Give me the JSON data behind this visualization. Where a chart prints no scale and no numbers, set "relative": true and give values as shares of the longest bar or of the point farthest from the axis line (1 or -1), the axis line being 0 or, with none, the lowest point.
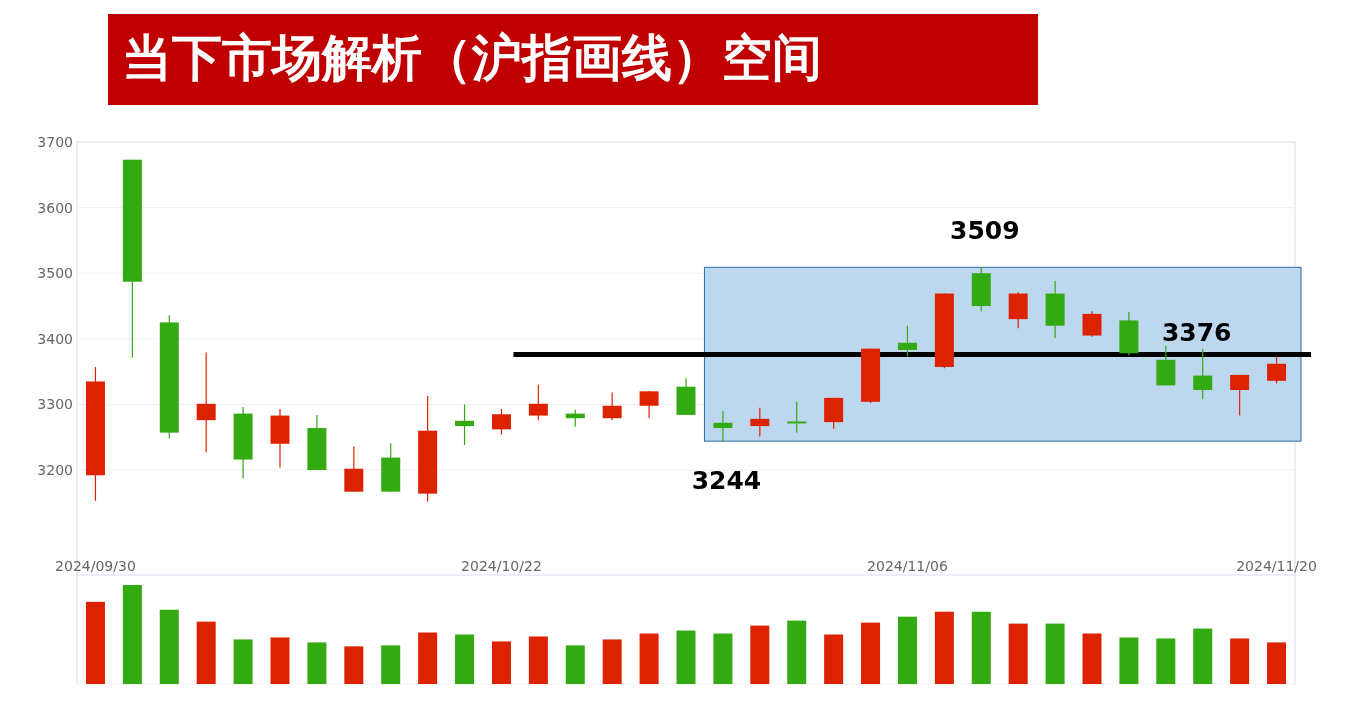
{
  "chart_data": [
    {
      "type": "candlestick",
      "title": "当下市场解析（沪指画线）空间",
      "categories": [
        "2024/09/30",
        null,
        null,
        null,
        null,
        null,
        null,
        null,
        null,
        null,
        null,
        "2024/10/22",
        null,
        null,
        null,
        null,
        null,
        null,
        null,
        null,
        null,
        null,
        "2024/11/06",
        null,
        null,
        null,
        null,
        null,
        null,
        null,
        null,
        null,
        "2024/11/20"
      ],
      "ohlc": [
        [
          3192,
          3357,
          3153,
          3335
        ],
        [
          3673,
          3673,
          3371,
          3487
        ],
        [
          3425,
          3436,
          3248,
          3257
        ],
        [
          3276,
          3379,
          3227,
          3301
        ],
        [
          3286,
          3296,
          3187,
          3216
        ],
        [
          3240,
          3293,
          3204,
          3283
        ],
        [
          3264,
          3284,
          3200,
          3200
        ],
        [
          3167,
          3236,
          3167,
          3202
        ],
        [
          3219,
          3241,
          3167,
          3167
        ],
        [
          3164,
          3313,
          3152,
          3260
        ],
        [
          3275,
          3300,
          3238,
          3267
        ],
        [
          3262,
          3293,
          3254,
          3285
        ],
        [
          3283,
          3330,
          3276,
          3301
        ],
        [
          3286,
          3292,
          3266,
          3279
        ],
        [
          3279,
          3318,
          3276,
          3298
        ],
        [
          3298,
          3320,
          3279,
          3320
        ],
        [
          3327,
          3340,
          3284,
          3284
        ],
        [
          3272,
          3290,
          3244,
          3264
        ],
        [
          3267,
          3295,
          3251,
          3278
        ],
        [
          3274,
          3304,
          3257,
          3271
        ],
        [
          3273,
          3310,
          3263,
          3310
        ],
        [
          3304,
          3385,
          3302,
          3385
        ],
        [
          3394,
          3420,
          3373,
          3383
        ],
        [
          3357,
          3469,
          3355,
          3469
        ],
        [
          3500,
          3509,
          3442,
          3450
        ],
        [
          3430,
          3471,
          3416,
          3469
        ],
        [
          3469,
          3488,
          3401,
          3420
        ],
        [
          3405,
          3442,
          3403,
          3438
        ],
        [
          3428,
          3441,
          3375,
          3378
        ],
        [
          3368,
          3390,
          3329,
          3329
        ],
        [
          3344,
          3385,
          3308,
          3322
        ],
        [
          3322,
          3345,
          3283,
          3345
        ],
        [
          3336,
          3373,
          3332,
          3362
        ]
      ],
      "colors": [
        "#dd2200",
        "#33aa11",
        "#33aa11",
        "#dd2200",
        "#33aa11",
        "#dd2200",
        "#33aa11",
        "#dd2200",
        "#33aa11",
        "#dd2200",
        "#33aa11",
        "#dd2200",
        "#dd2200",
        "#33aa11",
        "#dd2200",
        "#dd2200",
        "#33aa11",
        "#33aa11",
        "#dd2200",
        "#33aa11",
        "#dd2200",
        "#dd2200",
        "#33aa11",
        "#dd2200",
        "#33aa11",
        "#dd2200",
        "#33aa11",
        "#dd2200",
        "#33aa11",
        "#33aa11",
        "#33aa11",
        "#dd2200",
        "#dd2200"
      ],
      "ylim": [
        3040,
        3700
      ],
      "yticks": [
        3200,
        3300,
        3400,
        3500,
        3600,
        3700
      ],
      "grid": "y",
      "bands": [
        {
          "axis": "y",
          "from": 3244,
          "to": 3509,
          "color": "#bdd7ee"
        }
      ],
      "ref_lines": [
        {
          "axis": "y",
          "value": 3376,
          "label": "3376",
          "color": "#000000"
        }
      ],
      "annotations": [
        "3509",
        "3244"
      ]
    },
    {
      "type": "bar",
      "relative": true,
      "categories": [
        null,
        null,
        null,
        null,
        null,
        null,
        null,
        null,
        null,
        null,
        null,
        null,
        null,
        null,
        null,
        null,
        null,
        null,
        null,
        null,
        null,
        null,
        null,
        null,
        null,
        null,
        null,
        null,
        null,
        null,
        null,
        null,
        null
      ],
      "values": [
        0.83,
        1,
        0.75,
        0.63,
        0.45,
        0.47,
        0.42,
        0.38,
        0.39,
        0.52,
        0.5,
        0.43,
        0.48,
        0.39,
        0.45,
        0.51,
        0.54,
        0.51,
        0.59,
        0.64,
        0.5,
        0.62,
        0.68,
        0.73,
        0.73,
        0.61,
        0.61,
        0.51,
        0.47,
        0.46,
        0.56,
        0.46,
        0.42
      ],
      "colors": [
        "#dd2200",
        "#33aa11",
        "#33aa11",
        "#dd2200",
        "#33aa11",
        "#dd2200",
        "#33aa11",
        "#dd2200",
        "#33aa11",
        "#dd2200",
        "#33aa11",
        "#dd2200",
        "#dd2200",
        "#33aa11",
        "#dd2200",
        "#dd2200",
        "#33aa11",
        "#33aa11",
        "#dd2200",
        "#33aa11",
        "#dd2200",
        "#dd2200",
        "#33aa11",
        "#dd2200",
        "#33aa11",
        "#dd2200",
        "#33aa11",
        "#dd2200",
        "#33aa11",
        "#33aa11",
        "#33aa11",
        "#dd2200",
        "#dd2200"
      ]
    }
  ]
}
